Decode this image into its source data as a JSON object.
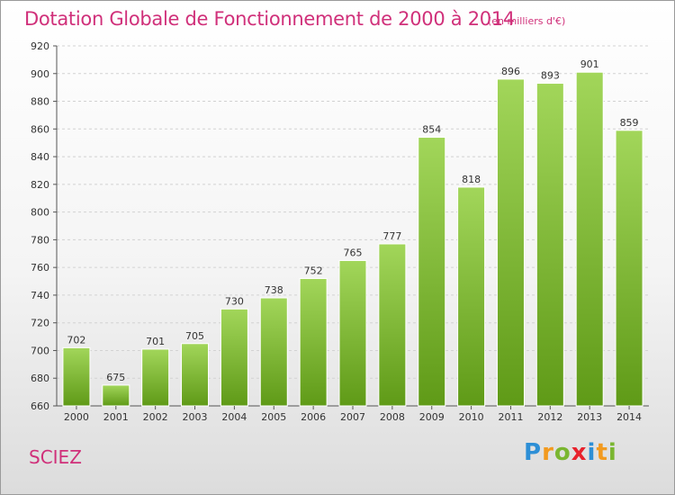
{
  "title": "Dotation Globale de Fonctionnement de 2000 à 2014",
  "subtitle": "(en milliers d'€)",
  "commune": "SCIEZ",
  "logo": {
    "text": "Proxiti",
    "colors": [
      "#2d8fd6",
      "#f29a1f",
      "#7ab630",
      "#e8222c",
      "#2d8fd6",
      "#f29a1f",
      "#7ab630"
    ]
  },
  "colors": {
    "title": "#d0307a",
    "bar_light": "#a2d65a",
    "bar_dark": "#5f9a17"
  },
  "chart_data": {
    "type": "bar",
    "title": "Dotation Globale de Fonctionnement de 2000 à 2014",
    "xlabel": "",
    "ylabel": "",
    "categories": [
      "2000",
      "2001",
      "2002",
      "2003",
      "2004",
      "2005",
      "2006",
      "2007",
      "2008",
      "2009",
      "2010",
      "2011",
      "2012",
      "2013",
      "2014"
    ],
    "values": [
      702,
      675,
      701,
      705,
      730,
      738,
      752,
      765,
      777,
      854,
      818,
      896,
      893,
      901,
      859
    ],
    "ylim": [
      660,
      920
    ],
    "yticks": [
      660,
      680,
      700,
      720,
      740,
      760,
      780,
      800,
      820,
      840,
      860,
      880,
      900,
      920
    ],
    "grid": true
  }
}
